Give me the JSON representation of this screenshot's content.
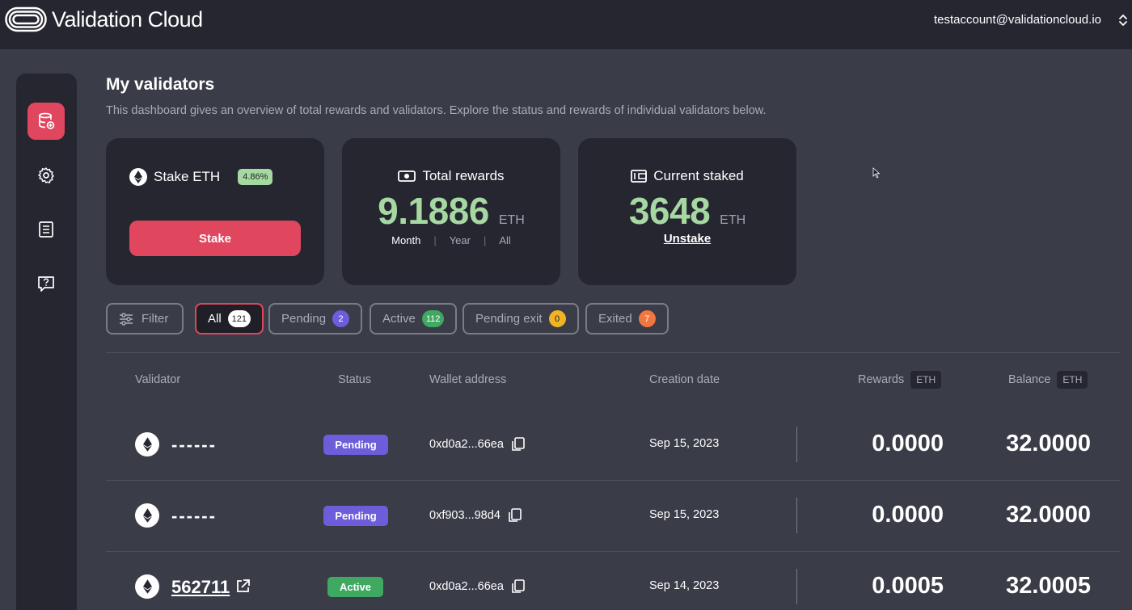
{
  "app": {
    "name": "Validation Cloud",
    "account_email": "testaccount@validationcloud.io"
  },
  "sidebar": {
    "items": [
      {
        "icon": "database-icon",
        "active": true
      },
      {
        "icon": "gear-icon",
        "active": false
      },
      {
        "icon": "document-icon",
        "active": false
      },
      {
        "icon": "help-chat-icon",
        "active": false
      }
    ]
  },
  "page": {
    "title": "My validators",
    "description": "This dashboard gives an overview of total rewards and validators. Explore the status and rewards of individual validators below."
  },
  "cards": {
    "stake": {
      "title": "Stake ETH",
      "apr": "4.86%",
      "button": "Stake"
    },
    "rewards": {
      "title": "Total rewards",
      "value": "9.1886",
      "unit": "ETH",
      "periods": [
        "Month",
        "Year",
        "All"
      ],
      "selected_period": "Month"
    },
    "staked": {
      "title": "Current staked",
      "value": "3648",
      "unit": "ETH",
      "action": "Unstake"
    }
  },
  "filters": {
    "filter_label": "Filter",
    "chips": [
      {
        "label": "All",
        "count": "121",
        "selected": true,
        "color": "#ffffff",
        "text_color": "#1e1f27"
      },
      {
        "label": "Pending",
        "count": "2",
        "selected": false,
        "color": "#6d5ddb",
        "text_color": "#ffffff"
      },
      {
        "label": "Active",
        "count": "112",
        "selected": false,
        "color": "#3fa861",
        "text_color": "#ffffff"
      },
      {
        "label": "Pending exit",
        "count": "0",
        "selected": false,
        "color": "#f0b323",
        "text_color": "#1e1f27"
      },
      {
        "label": "Exited",
        "count": "7",
        "selected": false,
        "color": "#f2763f",
        "text_color": "#ffffff"
      }
    ]
  },
  "table": {
    "headers": {
      "validator": "Validator",
      "status": "Status",
      "wallet": "Wallet address",
      "created": "Creation date",
      "rewards": "Rewards",
      "balance": "Balance",
      "unit": "ETH"
    },
    "rows": [
      {
        "validator": "------",
        "status": "Pending",
        "wallet": "0xd0a2...66ea",
        "created": "Sep 15, 2023",
        "rewards": "0.0000",
        "balance": "32.0000"
      },
      {
        "validator": "------",
        "status": "Pending",
        "wallet": "0xf903...98d4",
        "created": "Sep 15, 2023",
        "rewards": "0.0000",
        "balance": "32.0000"
      },
      {
        "validator": "562711",
        "status": "Active",
        "wallet": "0xd0a2...66ea",
        "created": "Sep 14, 2023",
        "rewards": "0.0005",
        "balance": "32.0005"
      }
    ]
  },
  "colors": {
    "accent": "#e0475e",
    "positive": "#a6d8a2",
    "pending": "#6d5ddb",
    "active": "#3fa861"
  }
}
